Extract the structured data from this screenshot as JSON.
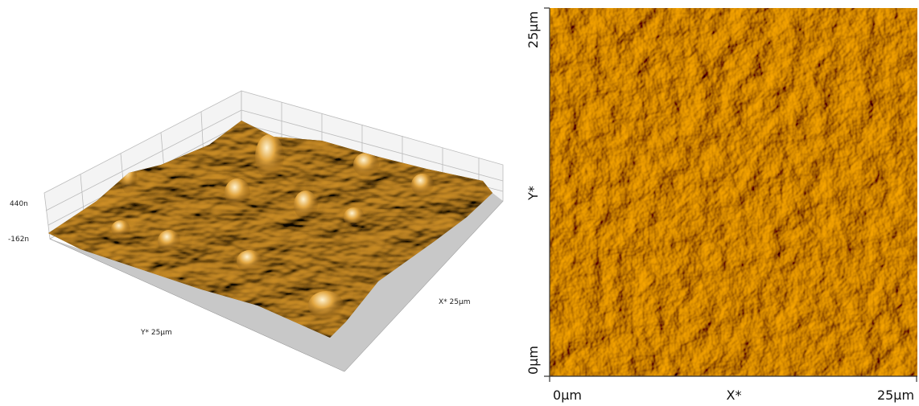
{
  "left_view": {
    "z_max": "440n",
    "z_min": "-162n",
    "y_axis_label": "Y* 25µm",
    "x_axis_label": "X* 25µm"
  },
  "right_view": {
    "y_top": "25µm",
    "y_label": "Y*",
    "y_bottom": "0µm",
    "x_left": "0µm",
    "x_label": "X*",
    "x_right": "25µm"
  }
}
